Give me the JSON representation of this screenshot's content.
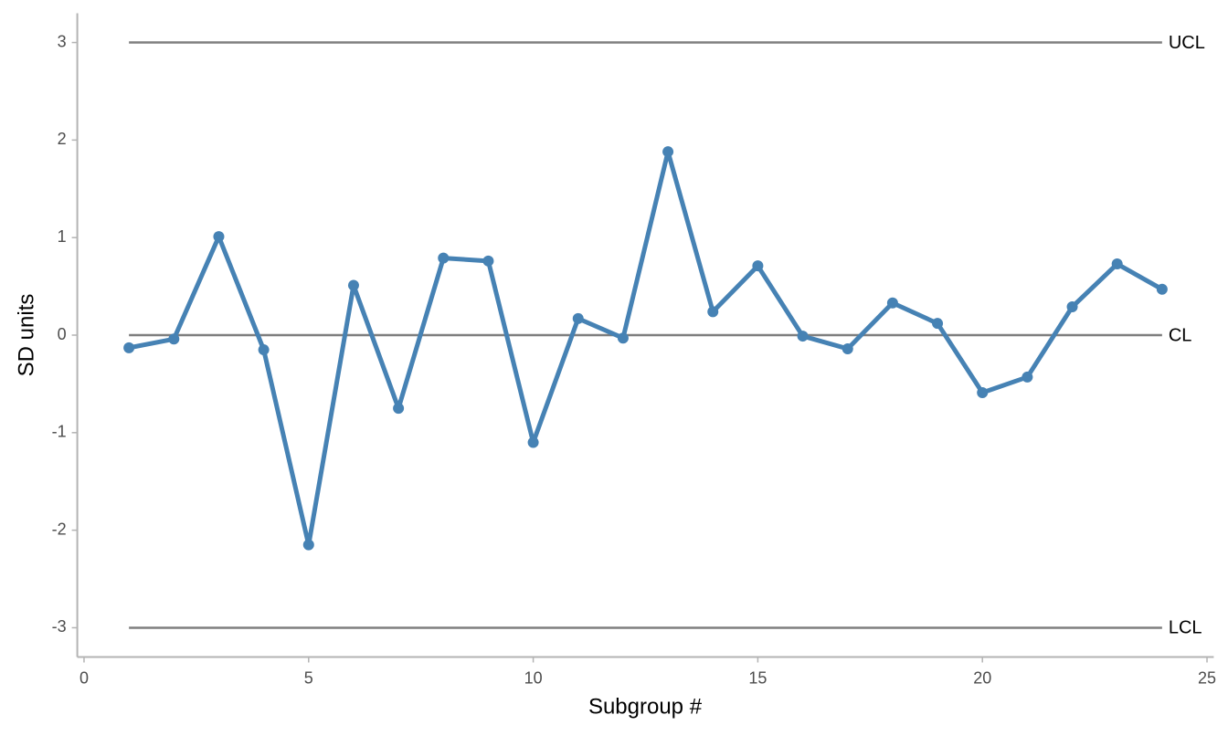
{
  "chart_data": {
    "type": "line",
    "x_label": "Subgroup #",
    "y_label": "SD units",
    "x": [
      1,
      2,
      3,
      4,
      5,
      6,
      7,
      8,
      9,
      10,
      11,
      12,
      13,
      14,
      15,
      16,
      17,
      18,
      19,
      20,
      21,
      22,
      23,
      24
    ],
    "values": [
      -0.13,
      -0.04,
      1.01,
      -0.15,
      -2.15,
      0.51,
      -0.75,
      0.79,
      0.76,
      -1.1,
      0.17,
      -0.03,
      1.88,
      0.24,
      0.71,
      -0.01,
      -0.14,
      0.33,
      0.12,
      -0.59,
      -0.43,
      0.29,
      0.73,
      0.47
    ],
    "color": "#4682b4",
    "control_lines": [
      {
        "label": "UCL",
        "value": 3
      },
      {
        "label": "CL",
        "value": 0
      },
      {
        "label": "LCL",
        "value": -3
      }
    ],
    "control_color": "#7f7f7f",
    "xlim": [
      -0.15,
      25.15
    ],
    "xticks": [
      0,
      5,
      10,
      15,
      20,
      25
    ],
    "ylim": [
      -3.3,
      3.3
    ],
    "yticks": [
      -3,
      -2,
      -1,
      0,
      1,
      2,
      3
    ],
    "grid": false
  }
}
